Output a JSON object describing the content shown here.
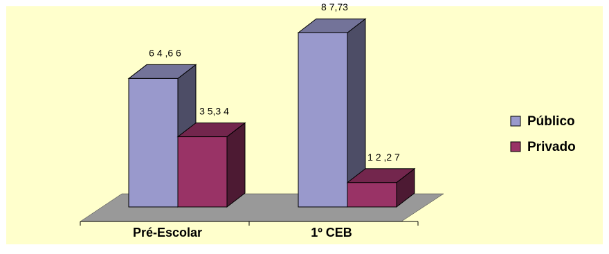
{
  "chart_data": {
    "type": "bar",
    "categories": [
      "Pré-Escolar",
      "1º CEB"
    ],
    "series": [
      {
        "name": "Público",
        "values": [
          64.66,
          87.73
        ],
        "color": "#9999cc"
      },
      {
        "name": "Privado",
        "values": [
          35.34,
          12.27
        ],
        "color": "#993366"
      }
    ],
    "data_labels": [
      [
        "6 4 ,6 6",
        "8 7,73"
      ],
      [
        "3 5,3 4",
        "1 2 ,2 7"
      ]
    ],
    "ylim": [
      0,
      100
    ],
    "grid": false,
    "legend_position": "right",
    "background_color": "#ffffcc",
    "floor_color": "#999999"
  }
}
